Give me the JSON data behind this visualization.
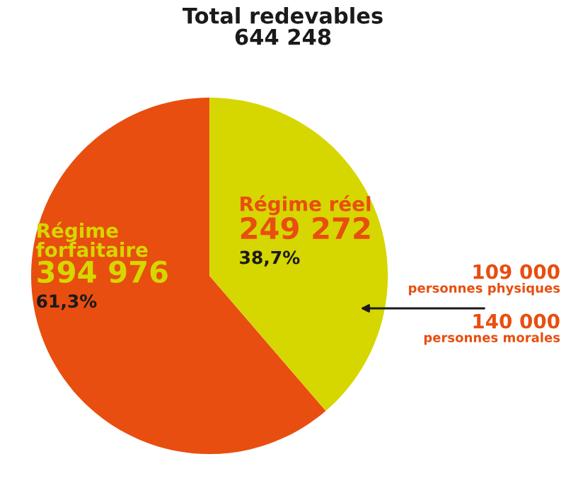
{
  "chart_data": {
    "type": "pie",
    "title": "Total redevables",
    "subtitle": "644 248",
    "categories": [
      "Régime réel",
      "Régime forfaitaire"
    ],
    "values": [
      249272,
      394976
    ],
    "colors": [
      "#d6d600",
      "#e84e0f"
    ],
    "value_labels": [
      "249 272\n38,7%",
      "394 976\n61,3%"
    ],
    "annotations": [
      "109 000\npersonnes physiques",
      "140 000\npersonnes morales"
    ]
  }
}
